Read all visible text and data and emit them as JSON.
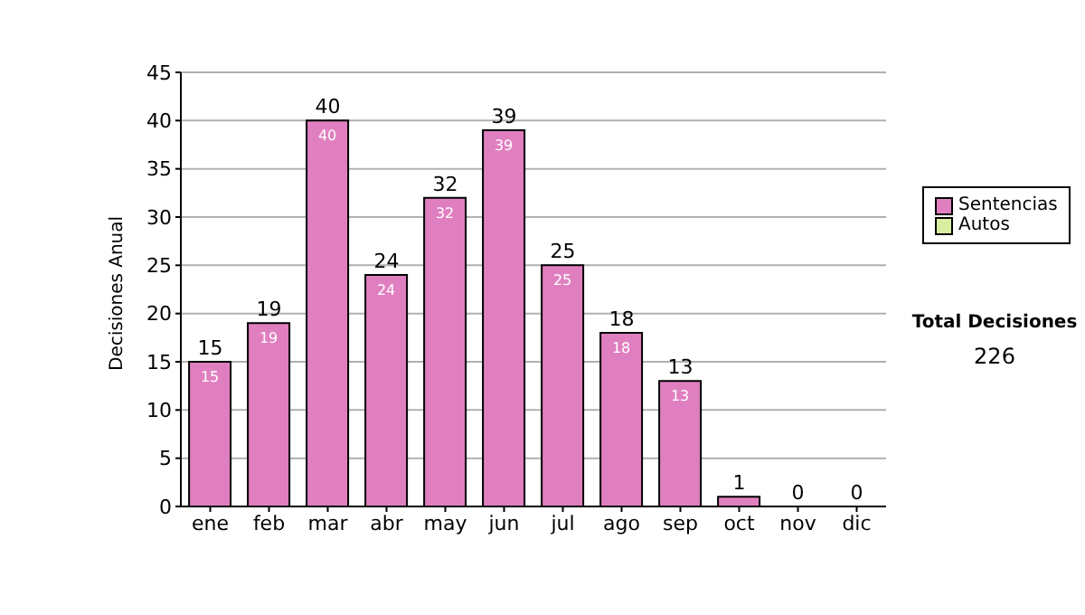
{
  "chart_data": {
    "type": "bar",
    "ylabel": "Decisiones Anual",
    "categories": [
      "ene",
      "feb",
      "mar",
      "abr",
      "may",
      "jun",
      "jul",
      "ago",
      "sep",
      "oct",
      "nov",
      "dic"
    ],
    "series": [
      {
        "name": "Sentencias",
        "color": "#e07fc0",
        "values": [
          15,
          19,
          40,
          24,
          32,
          39,
          25,
          18,
          13,
          1,
          0,
          0
        ],
        "value_labels": [
          "15",
          "19",
          "40",
          "24",
          "32",
          "39",
          "25",
          "18",
          "13",
          null,
          null,
          null
        ]
      },
      {
        "name": "Autos",
        "color": "#d8eea0",
        "values": [
          0,
          0,
          0,
          0,
          0,
          0,
          0,
          0,
          0,
          0,
          0,
          0
        ]
      }
    ],
    "stacked": true,
    "totals": [
      "15",
      "19",
      "40",
      "24",
      "32",
      "39",
      "25",
      "18",
      "13",
      "1",
      "0",
      "0"
    ],
    "ylim": [
      0,
      45
    ],
    "yticks": [
      0,
      5,
      10,
      15,
      20,
      25,
      30,
      35,
      40,
      45
    ],
    "grid": "y",
    "legend": "right",
    "annotations": [
      "Total Decisiones",
      "226"
    ]
  }
}
